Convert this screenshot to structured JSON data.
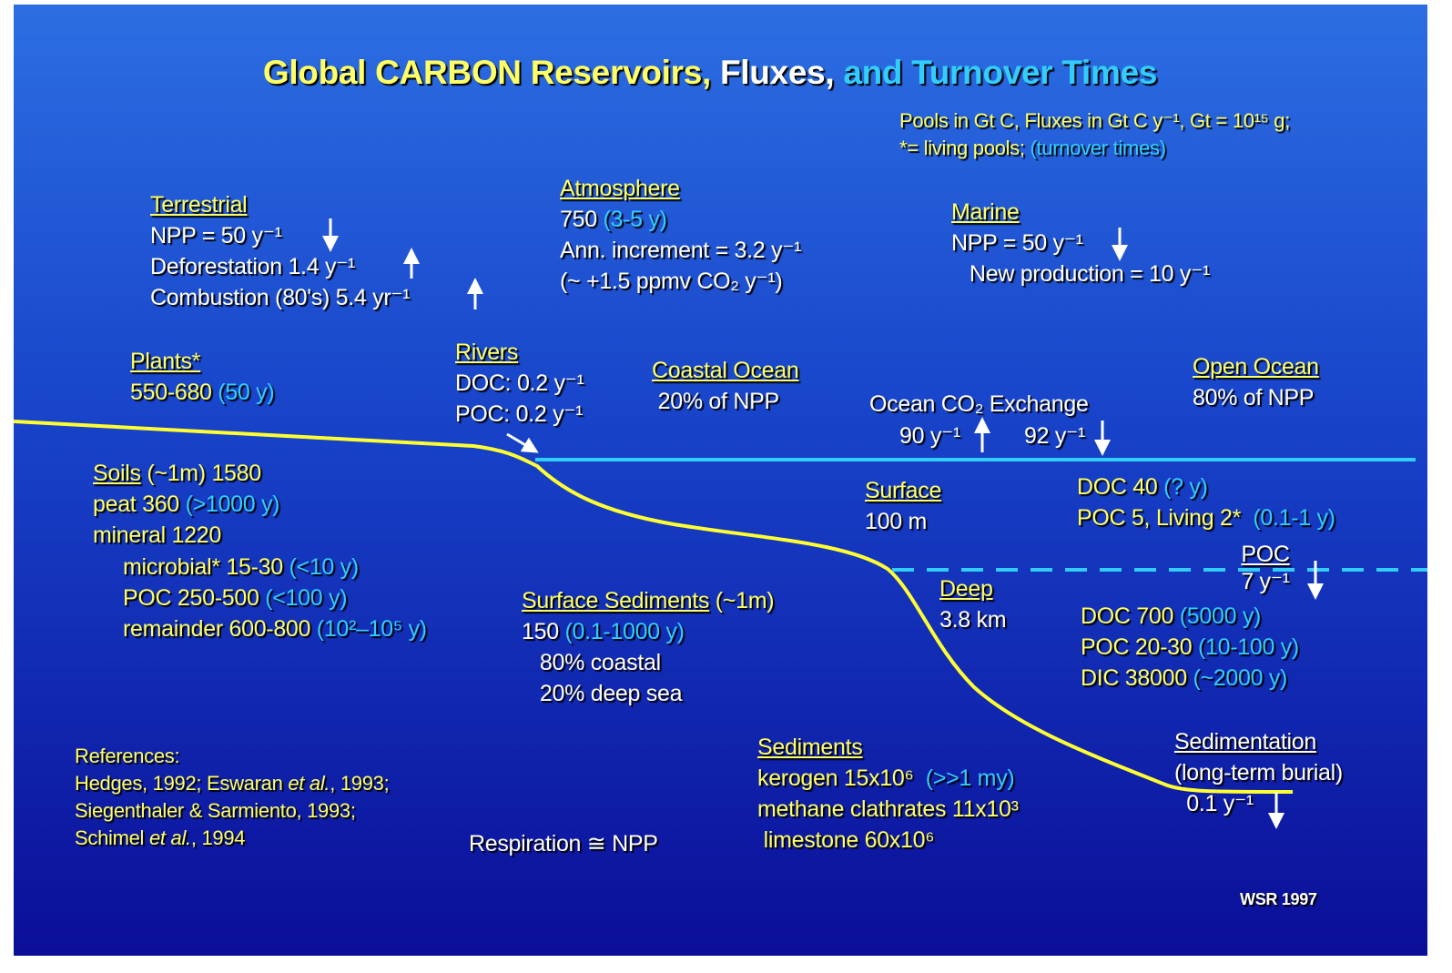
{
  "blocks": [
    {
      "lines": [
        [
          {
            "text": "Global CARBON Reservoirs,",
            "color": "#ffff66"
          },
          {
            "text": " Fluxes,",
            "color": "#ffffff"
          },
          {
            "text": " and Turnover Times",
            "color": "#33ccff"
          }
        ]
      ]
    },
    {
      "lines": [
        [
          {
            "text": "Pools in Gt C, Fluxes in Gt C y⁻¹, Gt = 10¹⁵ g;",
            "color": "#ffff66"
          }
        ],
        [
          {
            "text": "*= living pools; ",
            "color": "#ffff66"
          },
          {
            "text": "(turnover times)",
            "color": "#33ccff"
          }
        ]
      ]
    },
    {
      "lines": [
        [
          {
            "text": "Terrestrial",
            "color": "#ffff66",
            "underline": true
          }
        ],
        [
          {
            "text": "NPP = 50 y⁻¹",
            "color": "#ffffff"
          }
        ],
        [
          {
            "text": "Deforestation 1.4 y⁻¹",
            "color": "#ffffff"
          }
        ],
        [
          {
            "text": "Combustion (80's) 5.4 yr⁻¹",
            "color": "#ffffff"
          }
        ]
      ]
    },
    {
      "lines": [
        [
          {
            "text": "Atmosphere",
            "color": "#ffff66",
            "underline": true
          }
        ],
        [
          {
            "text": "750 ",
            "color": "#ffffff"
          },
          {
            "text": "(3-5 y)",
            "color": "#33ccff"
          }
        ],
        [
          {
            "text": "Ann. increment = 3.2 y⁻¹",
            "color": "#ffffff"
          }
        ],
        [
          {
            "text": "(~ +1.5 ppmv CO₂ y⁻¹)",
            "color": "#ffffff"
          }
        ]
      ]
    },
    {
      "lines": [
        [
          {
            "text": "Marine",
            "color": "#ffff66",
            "underline": true
          }
        ],
        [
          {
            "text": "NPP = 50 y⁻¹",
            "color": "#ffffff"
          }
        ],
        [
          {
            "text": "   New production = 10 y⁻¹",
            "color": "#ffffff"
          }
        ]
      ]
    },
    {
      "lines": [
        [
          {
            "text": "Plants*",
            "color": "#ffff66",
            "underline": true
          }
        ],
        [
          {
            "text": "550-680 ",
            "color": "#ffff66"
          },
          {
            "text": "(50 y)",
            "color": "#33ccff"
          }
        ]
      ]
    },
    {
      "lines": [
        [
          {
            "text": "Rivers",
            "color": "#ffff66",
            "underline": true
          }
        ],
        [
          {
            "text": "DOC: 0.2 y⁻¹",
            "color": "#ffffff"
          }
        ],
        [
          {
            "text": "POC: 0.2 y⁻¹",
            "color": "#ffffff"
          }
        ]
      ]
    },
    {
      "lines": [
        [
          {
            "text": "Coastal Ocean",
            "color": "#ffff66",
            "underline": true
          }
        ],
        [
          {
            "text": " 20% of NPP",
            "color": "#ffffff"
          }
        ]
      ]
    },
    {
      "lines": [
        [
          {
            "text": "Ocean CO₂ Exchange",
            "color": "#ffffff"
          }
        ]
      ]
    },
    {
      "lines": [
        [
          {
            "text": "90 y⁻¹",
            "color": "#ffffff"
          }
        ]
      ]
    },
    {
      "lines": [
        [
          {
            "text": "92 y⁻¹",
            "color": "#ffffff"
          }
        ]
      ]
    },
    {
      "lines": [
        [
          {
            "text": "Open Ocean",
            "color": "#ffff66",
            "underline": true
          }
        ],
        [
          {
            "text": "80% of NPP",
            "color": "#ffffff"
          }
        ]
      ]
    },
    {
      "lines": [
        [
          {
            "text": "Soils",
            "color": "#ffff66",
            "underline": true
          },
          {
            "text": " (~1m) 1580",
            "color": "#ffff66"
          }
        ],
        [
          {
            "text": "peat 360 ",
            "color": "#ffff66"
          },
          {
            "text": "(>1000 y)",
            "color": "#33ccff"
          }
        ],
        [
          {
            "text": "mineral 1220",
            "color": "#ffff66"
          }
        ]
      ]
    },
    {
      "lines": [
        [
          {
            "text": "microbial* 15-30 ",
            "color": "#ffff66"
          },
          {
            "text": "(<10 y)",
            "color": "#33ccff"
          }
        ],
        [
          {
            "text": "POC 250-500 ",
            "color": "#ffff66"
          },
          {
            "text": "(<100 y)",
            "color": "#33ccff"
          }
        ],
        [
          {
            "text": "remainder 600-800 ",
            "color": "#ffff66"
          },
          {
            "text": "(10²–10⁵ y)",
            "color": "#33ccff"
          }
        ]
      ]
    },
    {
      "lines": [
        [
          {
            "text": "Surface",
            "color": "#ffff66",
            "underline": true
          }
        ],
        [
          {
            "text": "100 m",
            "color": "#ffffff"
          }
        ]
      ]
    },
    {
      "lines": [
        [
          {
            "text": "DOC 40 ",
            "color": "#ffff66"
          },
          {
            "text": "(? y)",
            "color": "#33ccff"
          }
        ],
        [
          {
            "text": "POC 5, Living 2*  ",
            "color": "#ffff66"
          },
          {
            "text": "(0.1-1 y)",
            "color": "#33ccff"
          }
        ]
      ]
    },
    {
      "lines": [
        [
          {
            "text": "POC",
            "color": "#ffffff",
            "underline": true
          }
        ],
        [
          {
            "text": "7 y⁻¹",
            "color": "#ffffff"
          }
        ]
      ]
    },
    {
      "lines": [
        [
          {
            "text": "Deep",
            "color": "#ffff66",
            "underline": true
          }
        ],
        [
          {
            "text": "3.8 km",
            "color": "#ffffff"
          }
        ]
      ]
    },
    {
      "lines": [
        [
          {
            "text": "Surface Sediments",
            "color": "#ffff66",
            "underline": true
          },
          {
            "text": " (~1m)",
            "color": "#ffff66"
          }
        ],
        [
          {
            "text": "150 ",
            "color": "#ffffff"
          },
          {
            "text": "(0.1-1000 y)",
            "color": "#33ccff"
          }
        ],
        [
          {
            "text": "   80% coastal",
            "color": "#ffffff"
          }
        ],
        [
          {
            "text": "   20% deep sea",
            "color": "#ffffff"
          }
        ]
      ]
    },
    {
      "lines": [
        [
          {
            "text": "DOC 700 ",
            "color": "#ffff66"
          },
          {
            "text": "(5000 y)",
            "color": "#33ccff"
          }
        ],
        [
          {
            "text": "POC 20-30 ",
            "color": "#ffff66"
          },
          {
            "text": "(10-100 y)",
            "color": "#33ccff"
          }
        ],
        [
          {
            "text": "DIC 38000 ",
            "color": "#ffff66"
          },
          {
            "text": "(~2000 y)",
            "color": "#33ccff"
          }
        ]
      ]
    },
    {
      "lines": [
        [
          {
            "text": "References:",
            "color": "#ffff66"
          }
        ],
        [
          {
            "text": "Hedges, 1992; Eswaran ",
            "color": "#ffff66"
          },
          {
            "text": "et al.",
            "color": "#ffff66",
            "italic": true
          },
          {
            "text": ", 1993;",
            "color": "#ffff66"
          }
        ],
        [
          {
            "text": "Siegenthaler & Sarmiento, 1993;",
            "color": "#ffff66"
          }
        ],
        [
          {
            "text": "Schimel ",
            "color": "#ffff66"
          },
          {
            "text": "et al.",
            "color": "#ffff66",
            "italic": true
          },
          {
            "text": ", 1994",
            "color": "#ffff66"
          }
        ]
      ]
    },
    {
      "lines": [
        [
          {
            "text": "Respiration ≅ NPP",
            "color": "#ffffff"
          }
        ]
      ]
    },
    {
      "lines": [
        [
          {
            "text": "Sediments",
            "color": "#ffff66",
            "underline": true
          }
        ],
        [
          {
            "text": "kerogen 15x10⁶  ",
            "color": "#ffff66"
          },
          {
            "text": "(>>1 my)",
            "color": "#33ccff"
          }
        ],
        [
          {
            "text": "methane clathrates 11x10³",
            "color": "#ffff66"
          }
        ],
        [
          {
            "text": " limestone 60x10⁶",
            "color": "#ffff66"
          }
        ]
      ]
    },
    {
      "lines": [
        [
          {
            "text": "Sedimentation",
            "color": "#ffffff",
            "underline": true
          }
        ],
        [
          {
            "text": "(long-term burial)",
            "color": "#ffffff"
          }
        ],
        [
          {
            "text": "  0.1 y⁻¹",
            "color": "#ffffff"
          }
        ]
      ]
    },
    {
      "lines": [
        [
          {
            "text": "WSR 1997",
            "color": "#ffffff"
          }
        ]
      ]
    }
  ]
}
